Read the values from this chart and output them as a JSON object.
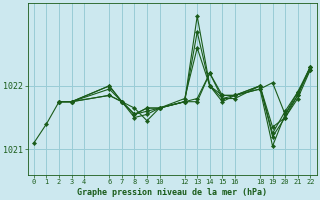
{
  "title": "Graphe pression niveau de la mer (hPa)",
  "bg_color": "#cce8ef",
  "grid_color": "#99ccd6",
  "line_color": "#1a5c1a",
  "marker_color": "#1a5c1a",
  "ylim": [
    1020.6,
    1023.3
  ],
  "xlim": [
    -0.5,
    22.5
  ],
  "yticks": [
    1021,
    1022
  ],
  "xticks": [
    0,
    1,
    2,
    3,
    4,
    6,
    7,
    8,
    9,
    10,
    12,
    13,
    14,
    15,
    16,
    18,
    19,
    20,
    21,
    22
  ],
  "series": [
    {
      "x": [
        0,
        1,
        2,
        3,
        6,
        7,
        8,
        9,
        10,
        12,
        13,
        14,
        15,
        16,
        18,
        19,
        20,
        21,
        22
      ],
      "y": [
        1021.1,
        1021.4,
        1021.75,
        1021.75,
        1022.0,
        1021.75,
        1021.55,
        1021.65,
        1021.65,
        1021.75,
        1023.1,
        1022.0,
        1021.85,
        1021.85,
        1021.95,
        1022.05,
        1021.55,
        1021.85,
        1022.3
      ]
    },
    {
      "x": [
        2,
        3,
        6,
        7,
        8,
        9,
        10,
        12,
        13,
        14,
        15,
        16,
        18,
        19,
        20,
        21,
        22
      ],
      "y": [
        1021.75,
        1021.75,
        1022.0,
        1021.75,
        1021.55,
        1021.65,
        1021.65,
        1021.75,
        1021.75,
        1022.2,
        1021.85,
        1021.85,
        1021.95,
        1021.05,
        1021.55,
        1021.9,
        1022.25
      ]
    },
    {
      "x": [
        2,
        3,
        6,
        7,
        8,
        9,
        10,
        12,
        13,
        14,
        15,
        16,
        18,
        19,
        20,
        21,
        22
      ],
      "y": [
        1021.75,
        1021.75,
        1021.95,
        1021.75,
        1021.5,
        1021.55,
        1021.65,
        1021.8,
        1022.6,
        1022.0,
        1021.8,
        1021.85,
        1022.0,
        1021.2,
        1021.5,
        1021.8,
        1022.25
      ]
    },
    {
      "x": [
        2,
        3,
        6,
        7,
        8,
        9,
        10,
        12,
        13,
        14,
        15,
        16,
        18,
        19,
        20,
        21,
        22
      ],
      "y": [
        1021.75,
        1021.75,
        1021.85,
        1021.75,
        1021.65,
        1021.45,
        1021.65,
        1021.75,
        1021.8,
        1022.2,
        1021.8,
        1021.8,
        1022.0,
        1021.25,
        1021.6,
        1021.9,
        1022.3
      ]
    },
    {
      "x": [
        2,
        3,
        6,
        7,
        8,
        9,
        10,
        12,
        13,
        14,
        15,
        16,
        18,
        19,
        20,
        21,
        22
      ],
      "y": [
        1021.75,
        1021.75,
        1021.85,
        1021.75,
        1021.55,
        1021.6,
        1021.65,
        1021.75,
        1022.85,
        1022.0,
        1021.75,
        1021.85,
        1022.0,
        1021.35,
        1021.5,
        1021.85,
        1022.3
      ]
    }
  ]
}
